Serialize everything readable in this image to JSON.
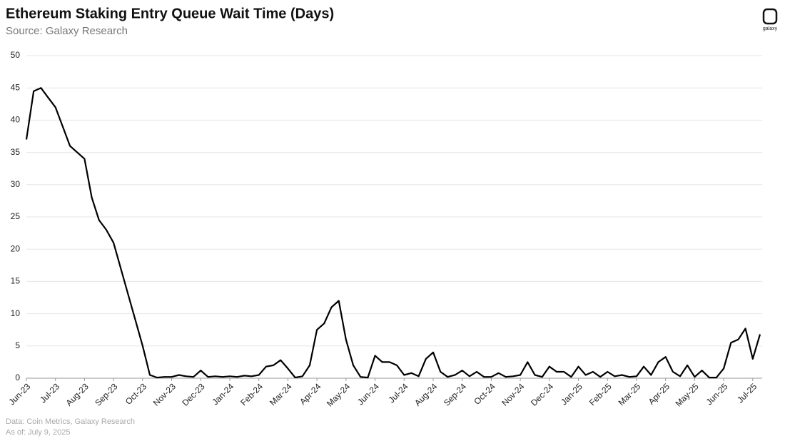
{
  "chart_data": {
    "type": "line",
    "title": "Ethereum Staking Entry Queue Wait Time (Days)",
    "subtitle": "Source: Galaxy Research",
    "footnotes": [
      "Data: Coin Metrics, Galaxy Research",
      "As of: July 9, 2025"
    ],
    "logo": "galaxy",
    "categories": [
      "Jun-23",
      null,
      null,
      null,
      "Jul-23",
      null,
      null,
      null,
      "Aug-23",
      null,
      null,
      null,
      "Sep-23",
      null,
      null,
      null,
      "Oct-23",
      null,
      null,
      null,
      "Nov-23",
      null,
      null,
      null,
      "Dec-23",
      null,
      null,
      null,
      "Jan-24",
      null,
      null,
      null,
      "Feb-24",
      null,
      null,
      null,
      "Mar-24",
      null,
      null,
      null,
      "Apr-24",
      null,
      null,
      null,
      "May-24",
      null,
      null,
      null,
      "Jun-24",
      null,
      null,
      null,
      "Jul-24",
      null,
      null,
      null,
      "Aug-24",
      null,
      null,
      null,
      "Sep-24",
      null,
      null,
      null,
      "Oct-24",
      null,
      null,
      null,
      "Nov-24",
      null,
      null,
      null,
      "Dec-24",
      null,
      null,
      null,
      "Jan-25",
      null,
      null,
      null,
      "Feb-25",
      null,
      null,
      null,
      "Mar-25",
      null,
      null,
      null,
      "Apr-25",
      null,
      null,
      null,
      "May-25",
      null,
      null,
      null,
      "Jun-25",
      null,
      null,
      null,
      "Jul-25",
      null
    ],
    "values": [
      37,
      44.5,
      45,
      43.5,
      42,
      39,
      36,
      35,
      34,
      28,
      24.5,
      23,
      21,
      17,
      13,
      9,
      5,
      0.5,
      0.1,
      0.2,
      0.2,
      0.5,
      0.3,
      0.2,
      1.2,
      0.2,
      0.3,
      0.2,
      0.3,
      0.2,
      0.4,
      0.3,
      0.5,
      1.8,
      2,
      2.8,
      1.5,
      0.1,
      0.3,
      2,
      7.5,
      8.5,
      11,
      12,
      6,
      2,
      0.2,
      0.1,
      3.5,
      2.5,
      2.5,
      2,
      0.5,
      0.8,
      0.3,
      3,
      4,
      1,
      0.2,
      0.5,
      1.2,
      0.3,
      1,
      0.2,
      0.2,
      0.8,
      0.2,
      0.3,
      0.5,
      2.5,
      0.5,
      0.2,
      1.8,
      1,
      1,
      0.2,
      1.8,
      0.5,
      1,
      0.2,
      1,
      0.3,
      0.5,
      0.2,
      0.3,
      1.8,
      0.5,
      2.5,
      3.3,
      1,
      0.3,
      2,
      0.2,
      1.2,
      0.1,
      0.1,
      1.5,
      5.5,
      6,
      7.7,
      3,
      6.8
    ],
    "color": "#000000",
    "ylim": [
      0,
      50
    ],
    "yticks": [
      0,
      5,
      10,
      15,
      20,
      25,
      30,
      35,
      40,
      45,
      50
    ],
    "grid": true
  }
}
